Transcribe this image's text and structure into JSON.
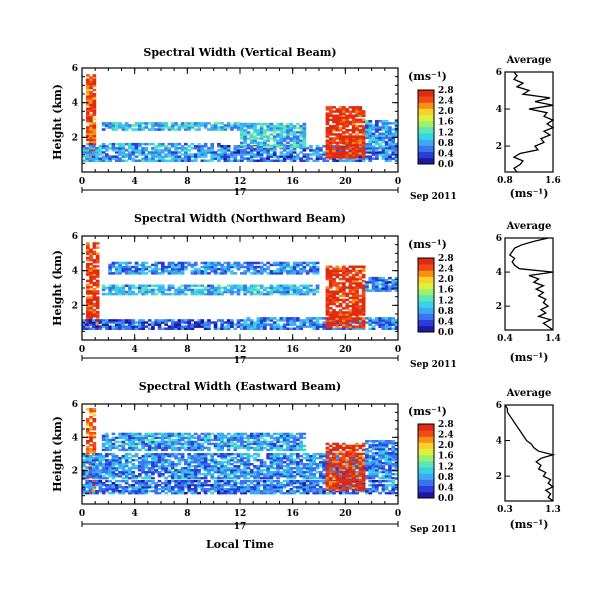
{
  "chart_data": {
    "type": "heatmap",
    "xlabel": "Local Time",
    "x_ticks": [
      "0",
      "4",
      "8",
      "12",
      "16",
      "20",
      "0"
    ],
    "x_range": [
      0,
      24
    ],
    "date_axis": {
      "day": "17",
      "month_year": "Sep 2011"
    },
    "ylabel": "Height (km)",
    "y_range": [
      0,
      6
    ],
    "y_ticks": [
      "2",
      "4",
      "6"
    ],
    "colorbar": {
      "unit": "(ms⁻¹)",
      "range": [
        0.0,
        2.8
      ],
      "ticks": [
        "0.0",
        "0.4",
        "0.8",
        "1.2",
        "1.6",
        "2.0",
        "2.4",
        "2.8"
      ],
      "colors": [
        "#1a1aa0",
        "#2b3cd8",
        "#3c74f0",
        "#3ea8f2",
        "#36d2e6",
        "#5ee6b6",
        "#9cf070",
        "#dcf03c",
        "#f8d228",
        "#f89018",
        "#f04a16",
        "#e02a12"
      ]
    },
    "panels": [
      {
        "title": "Spectral Width (Vertical Beam)",
        "average": {
          "title": "Average",
          "xlabel": "(ms⁻¹)",
          "x_ticks": [
            "0.8",
            "1.6"
          ],
          "x_range": [
            0.8,
            1.6
          ],
          "y_ticks": [
            "2",
            "4",
            "6"
          ],
          "profile": [
            [
              1.0,
              0.6
            ],
            [
              0.95,
              0.8
            ],
            [
              1.05,
              1.0
            ],
            [
              1.1,
              1.2
            ],
            [
              0.95,
              1.4
            ],
            [
              1.05,
              1.6
            ],
            [
              1.35,
              1.8
            ],
            [
              1.3,
              2.0
            ],
            [
              1.45,
              2.2
            ],
            [
              1.4,
              2.4
            ],
            [
              1.55,
              2.6
            ],
            [
              1.45,
              2.8
            ],
            [
              1.6,
              3.0
            ],
            [
              1.5,
              3.2
            ],
            [
              1.6,
              3.4
            ],
            [
              1.45,
              3.6
            ],
            [
              1.5,
              3.8
            ],
            [
              1.2,
              4.0
            ],
            [
              1.6,
              4.2
            ],
            [
              1.3,
              4.4
            ],
            [
              1.55,
              4.6
            ],
            [
              1.1,
              4.8
            ],
            [
              1.2,
              5.0
            ],
            [
              1.0,
              5.2
            ],
            [
              1.1,
              5.4
            ],
            [
              0.95,
              5.6
            ],
            [
              1.0,
              5.8
            ],
            [
              0.95,
              6.0
            ]
          ]
        },
        "features": [
          {
            "t": [
              0.3,
              1.0
            ],
            "h": [
              0.6,
              5.6
            ],
            "v": 2.5
          },
          {
            "t": [
              0,
              10.5
            ],
            "h": [
              0.6,
              1.6
            ],
            "v": 0.8
          },
          {
            "t": [
              10.5,
              24
            ],
            "h": [
              0.6,
              1.5
            ],
            "v": 0.6
          },
          {
            "t": [
              1.5,
              12
            ],
            "h": [
              2.4,
              2.8
            ],
            "v": 0.9
          },
          {
            "t": [
              12,
              17
            ],
            "h": [
              1.4,
              2.8
            ],
            "v": 1.0
          },
          {
            "t": [
              18.5,
              21.5
            ],
            "h": [
              0.8,
              3.8
            ],
            "v": 2.7
          },
          {
            "t": [
              21.5,
              24
            ],
            "h": [
              1.2,
              3.0
            ],
            "v": 0.8
          }
        ]
      },
      {
        "title": "Spectral Width (Northward Beam)",
        "average": {
          "title": "Average",
          "xlabel": "(ms⁻¹)",
          "x_ticks": [
            "0.4",
            "1.4"
          ],
          "x_range": [
            0.4,
            1.4
          ],
          "y_ticks": [
            "2",
            "4",
            "6"
          ],
          "profile": [
            [
              1.4,
              0.6
            ],
            [
              1.3,
              0.8
            ],
            [
              1.2,
              1.0
            ],
            [
              1.35,
              1.2
            ],
            [
              1.1,
              1.4
            ],
            [
              1.25,
              1.6
            ],
            [
              1.15,
              1.8
            ],
            [
              1.3,
              2.0
            ],
            [
              1.2,
              2.2
            ],
            [
              1.25,
              2.4
            ],
            [
              1.1,
              2.6
            ],
            [
              1.2,
              2.8
            ],
            [
              1.05,
              3.0
            ],
            [
              1.2,
              3.2
            ],
            [
              1.0,
              3.4
            ],
            [
              1.1,
              3.6
            ],
            [
              0.9,
              3.8
            ],
            [
              1.4,
              4.0
            ],
            [
              0.7,
              4.2
            ],
            [
              0.6,
              4.4
            ],
            [
              0.55,
              4.6
            ],
            [
              0.6,
              4.8
            ],
            [
              0.5,
              5.0
            ],
            [
              0.55,
              5.2
            ],
            [
              0.6,
              5.4
            ],
            [
              0.75,
              5.6
            ],
            [
              1.0,
              5.8
            ],
            [
              1.3,
              6.0
            ]
          ]
        },
        "features": [
          {
            "t": [
              0.3,
              1.1
            ],
            "h": [
              0.6,
              5.6
            ],
            "v": 2.6
          },
          {
            "t": [
              0,
              12
            ],
            "h": [
              0.6,
              1.2
            ],
            "v": 0.5
          },
          {
            "t": [
              12,
              24
            ],
            "h": [
              0.6,
              1.3
            ],
            "v": 0.7
          },
          {
            "t": [
              1.5,
              18
            ],
            "h": [
              2.6,
              3.2
            ],
            "v": 0.9
          },
          {
            "t": [
              2,
              18
            ],
            "h": [
              3.8,
              4.5
            ],
            "v": 0.7
          },
          {
            "t": [
              18.5,
              21.5
            ],
            "h": [
              0.7,
              4.3
            ],
            "v": 2.7
          },
          {
            "t": [
              21.5,
              24
            ],
            "h": [
              2.8,
              3.6
            ],
            "v": 0.6
          }
        ]
      },
      {
        "title": "Spectral Width (Eastward Beam)",
        "average": {
          "title": "Average",
          "xlabel": "(ms⁻¹)",
          "x_ticks": [
            "0.3",
            "1.3"
          ],
          "x_range": [
            0.3,
            1.3
          ],
          "y_ticks": [
            "2",
            "4",
            "6"
          ],
          "profile": [
            [
              1.3,
              0.6
            ],
            [
              1.2,
              0.8
            ],
            [
              1.25,
              1.0
            ],
            [
              1.15,
              1.2
            ],
            [
              1.3,
              1.4
            ],
            [
              1.2,
              1.6
            ],
            [
              1.25,
              1.8
            ],
            [
              1.1,
              2.0
            ],
            [
              1.15,
              2.2
            ],
            [
              1.0,
              2.4
            ],
            [
              1.05,
              2.6
            ],
            [
              0.95,
              2.8
            ],
            [
              1.05,
              3.0
            ],
            [
              1.3,
              3.2
            ],
            [
              1.0,
              3.4
            ],
            [
              0.9,
              3.6
            ],
            [
              0.85,
              3.8
            ],
            [
              0.75,
              4.0
            ],
            [
              0.7,
              4.2
            ],
            [
              0.65,
              4.4
            ],
            [
              0.6,
              4.6
            ],
            [
              0.55,
              4.8
            ],
            [
              0.5,
              5.0
            ],
            [
              0.45,
              5.2
            ],
            [
              0.4,
              5.4
            ],
            [
              0.35,
              5.6
            ],
            [
              0.35,
              5.8
            ],
            [
              0.3,
              6.0
            ]
          ]
        },
        "features": [
          {
            "t": [
              0.3,
              1.0
            ],
            "h": [
              0.6,
              5.7
            ],
            "v": 2.4
          },
          {
            "t": [
              0,
              24
            ],
            "h": [
              0.6,
              1.4
            ],
            "v": 0.6
          },
          {
            "t": [
              0,
              24
            ],
            "h": [
              1.5,
              3.0
            ],
            "v": 0.7
          },
          {
            "t": [
              1.5,
              17
            ],
            "h": [
              3.2,
              4.2
            ],
            "v": 0.8
          },
          {
            "t": [
              18.5,
              21.5
            ],
            "h": [
              0.8,
              3.6
            ],
            "v": 2.7
          },
          {
            "t": [
              21.5,
              24
            ],
            "h": [
              2.4,
              3.8
            ],
            "v": 0.7
          }
        ]
      }
    ]
  }
}
